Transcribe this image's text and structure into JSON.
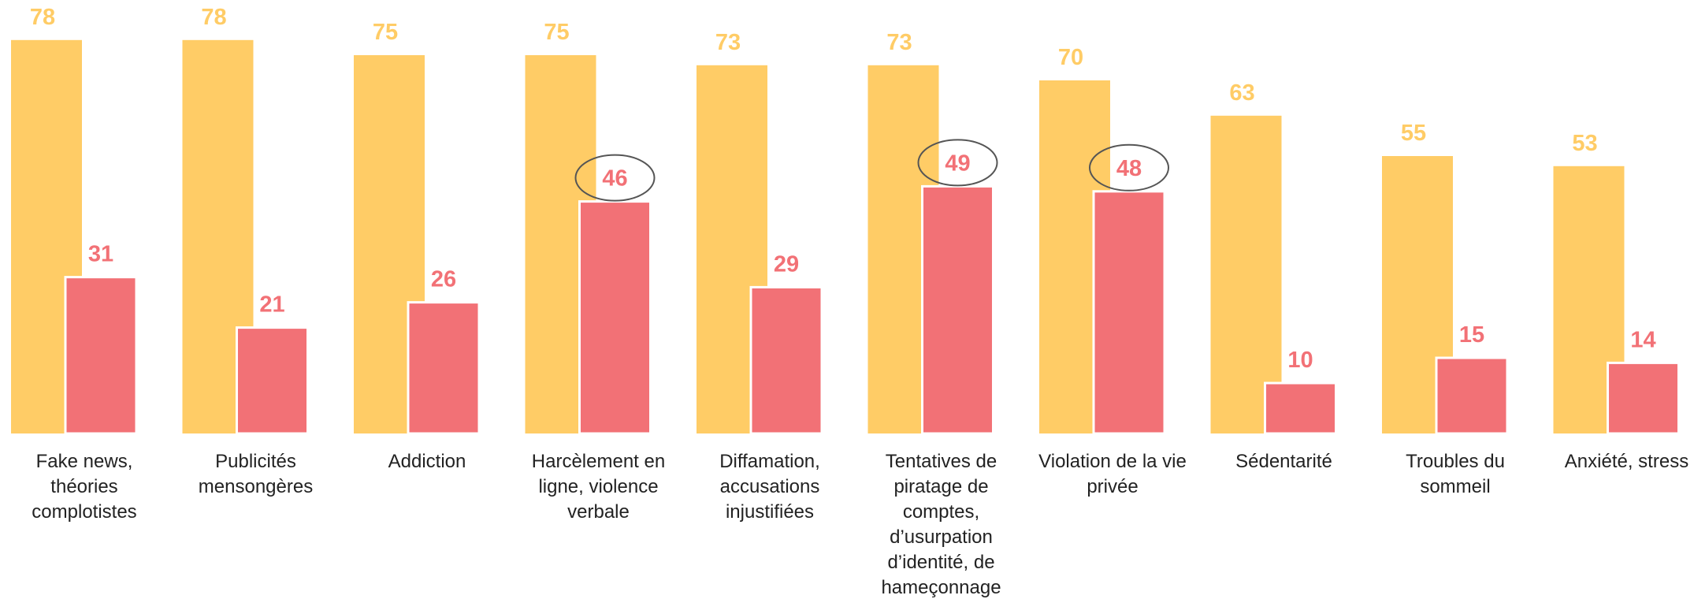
{
  "chart_data": {
    "type": "bar",
    "categories": [
      "Fake news, théories complotistes",
      "Publicités mensongères",
      "Addiction",
      "Harcèlement en ligne, violence verbale",
      "Diffamation, accusations injustifiées",
      "Tentatives de piratage de comptes, d’usurpation d’identité, de hameçonnage",
      "Violation de la vie privée",
      "Sédentarité",
      "Troubles du sommeil",
      "Anxiété, stress"
    ],
    "series": [
      {
        "color": "#FFCC66",
        "values": [
          78,
          78,
          75,
          75,
          73,
          73,
          70,
          63,
          55,
          53
        ]
      },
      {
        "color": "#F27176",
        "values": [
          31,
          21,
          26,
          46,
          29,
          49,
          48,
          10,
          15,
          14
        ]
      }
    ],
    "ylim": [
      0,
      80
    ]
  }
}
